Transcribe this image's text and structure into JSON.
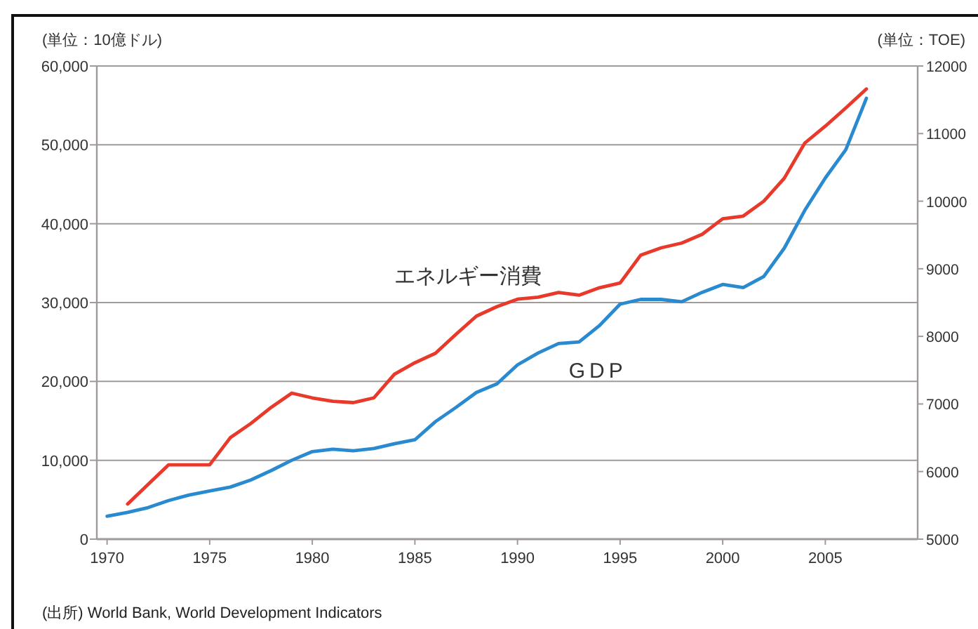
{
  "chart_data": {
    "type": "line",
    "ylabel": "(単位：10億ドル)",
    "y2label": "(単位：TOE)",
    "annotations": [
      "(出所) World Bank, World Development Indicators"
    ],
    "xlim": [
      1969.5,
      2009.5
    ],
    "xticks": [
      1970,
      1975,
      1980,
      1985,
      1990,
      1995,
      2000,
      2005
    ],
    "ylim": [
      0,
      60000
    ],
    "yticks": [
      0,
      {
        "value": 10000,
        "label": "10,000"
      },
      {
        "value": 20000,
        "label": "20,000"
      },
      {
        "value": 30000,
        "label": "30,000"
      },
      {
        "value": 40000,
        "label": "40,000"
      },
      {
        "value": 50000,
        "label": "50,000"
      },
      {
        "value": 60000,
        "label": "60,000"
      }
    ],
    "y2lim": [
      5000,
      12000
    ],
    "y2ticks": [
      5000,
      6000,
      7000,
      8000,
      9000,
      10000,
      11000,
      12000
    ],
    "grid": "y",
    "legend": false,
    "marker": "none",
    "line_style": "solid",
    "series": [
      {
        "name": "GDP",
        "color": "#2a8ad0",
        "axis": "y",
        "x": [
          1970,
          1971,
          1972,
          1973,
          1974,
          1975,
          1976,
          1977,
          1978,
          1979,
          1980,
          1981,
          1982,
          1983,
          1984,
          1985,
          1986,
          1987,
          1988,
          1989,
          1990,
          1991,
          1992,
          1993,
          1994,
          1995,
          1996,
          1997,
          1998,
          1999,
          2000,
          2001,
          2002,
          2003,
          2004,
          2005,
          2006,
          2007
        ],
        "values": [
          2900,
          3400,
          4000,
          4900,
          5600,
          6100,
          6600,
          7500,
          8700,
          10000,
          11100,
          11400,
          11200,
          11500,
          12100,
          12600,
          14900,
          16700,
          18600,
          19700,
          22100,
          23600,
          24800,
          25000,
          27100,
          29800,
          30400,
          30400,
          30100,
          31300,
          32300,
          31900,
          33300,
          36900,
          41700,
          45800,
          49400,
          55900
        ]
      },
      {
        "name": "エネルギー消費",
        "color": "#e8392a",
        "axis": "y2",
        "x": [
          1971,
          1972,
          1973,
          1974,
          1975,
          1976,
          1977,
          1978,
          1979,
          1980,
          1981,
          1982,
          1983,
          1984,
          1985,
          1986,
          1987,
          1988,
          1989,
          1990,
          1991,
          1992,
          1993,
          1994,
          1995,
          1996,
          1997,
          1998,
          1999,
          2000,
          2001,
          2002,
          2003,
          2004,
          2005,
          2006,
          2007
        ],
        "values": [
          5520,
          5810,
          6100,
          6100,
          6100,
          6500,
          6710,
          6950,
          7160,
          7090,
          7040,
          7020,
          7090,
          7440,
          7610,
          7750,
          8030,
          8300,
          8440,
          8550,
          8580,
          8650,
          8610,
          8720,
          8790,
          9200,
          9310,
          9380,
          9510,
          9740,
          9780,
          10000,
          10340,
          10860,
          11110,
          11380,
          11660
        ]
      }
    ]
  }
}
